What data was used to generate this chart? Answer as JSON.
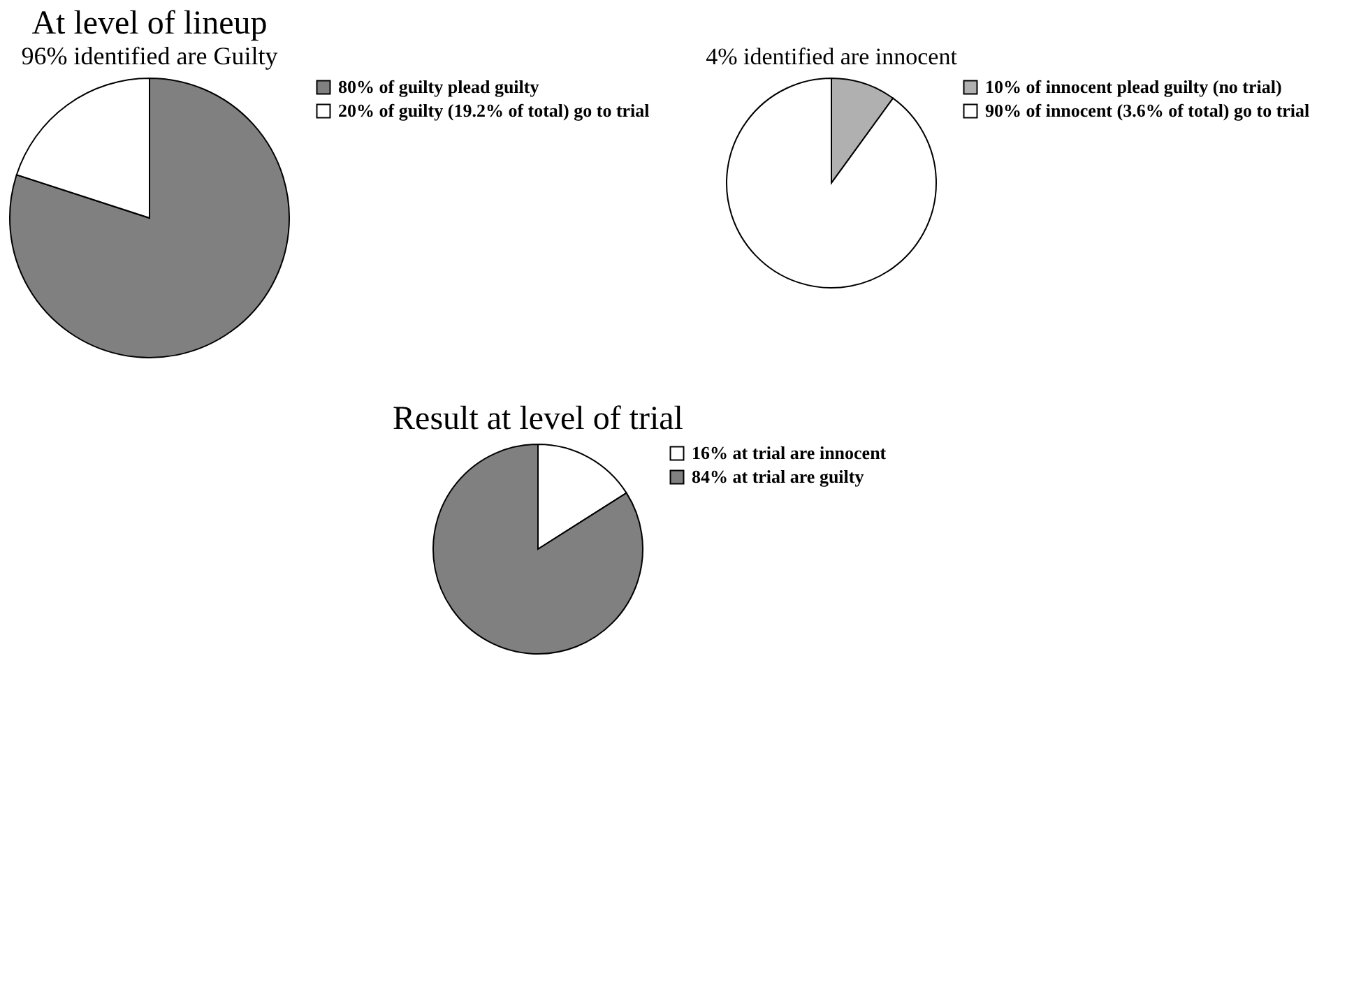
{
  "chart_data": [
    {
      "type": "pie",
      "title": "At level of lineup",
      "subtitle": "96% identified are Guilty",
      "categories": [
        "80% of guilty plead guilty",
        "20% of guilty (19.2% of total) go to trial"
      ],
      "values": [
        80,
        20
      ],
      "colors": [
        "#808080",
        "#ffffff"
      ],
      "legend": "right"
    },
    {
      "type": "pie",
      "title": "4% identified are innocent",
      "categories": [
        "10% of innocent plead guilty (no trial)",
        "90% of innocent (3.6% of total) go to trial"
      ],
      "values": [
        10,
        90
      ],
      "colors": [
        "#b0b0b0",
        "#ffffff"
      ],
      "legend": "right"
    },
    {
      "type": "pie",
      "title": "Result at level of trial",
      "categories": [
        "16% at trial are innocent",
        "84% at trial are guilty"
      ],
      "values": [
        16,
        84
      ],
      "colors": [
        "#ffffff",
        "#808080"
      ],
      "legend": "right"
    }
  ]
}
